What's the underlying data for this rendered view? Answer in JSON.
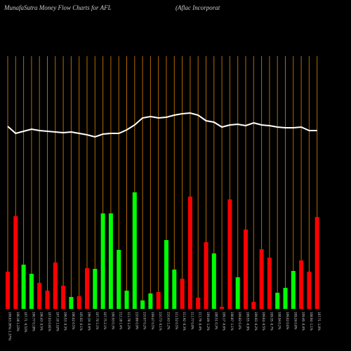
{
  "chart_data": {
    "type": "bar",
    "title": "MunafaSutra  Money Flow  Charts for AFL",
    "subtitle": "(Aflac Incorporat",
    "categories": [
      "109.63 26%(-1.37%)",
      "106.38 1.23%",
      "107.71 -0.53%",
      "106.77 0.18%",
      "106.43 -0.5%",
      "107.03 0.81%",
      "107.10 1.02%",
      "106.53 -0.3%",
      "106.02 0.5%",
      "105.93 -0.1%",
      "106.34 -0.6%",
      "107.70 1.1%",
      "107.75 2.1%",
      "106.93 0.3%",
      "112.18 1.4%",
      "111.78 1.2%",
      "110.86 0.9%",
      "110.07 0.2%",
      "109.47 0.5%",
      "110.73 -0.1%",
      "110.43 1.2%",
      "111.52 0.5%",
      "111.92 -0.3%",
      "111.77 0.8%",
      "111.76 -0.4%",
      "109.49 -1.2%",
      "108.51 0.3%",
      "109.17 -0.6%",
      "108.87 -1.1%",
      "109.82 0.4%",
      "109.55 -0.9%",
      "109.93 -0.2%",
      "109.64 -0.5%",
      "109.35 -0.7%",
      "108.94 0.2%",
      "109.02 0.6%",
      "109.26 0.8%",
      "109.40 -0.4%",
      "108.94 -1.1%",
      "107.71 -1.0%"
    ],
    "values": [
      53,
      132,
      63,
      50,
      37,
      26,
      66,
      33,
      17,
      18,
      58,
      57,
      136,
      136,
      84,
      26,
      166,
      12,
      22,
      24,
      98,
      56,
      43,
      160,
      16,
      95,
      79,
      3,
      156,
      45,
      113,
      10,
      85,
      73,
      23,
      30,
      54,
      69,
      53,
      131
    ],
    "colors": [
      "red",
      "red",
      "lime",
      "lime",
      "red",
      "red",
      "red",
      "red",
      "lime",
      "red",
      "red",
      "lime",
      "lime",
      "lime",
      "lime",
      "lime",
      "lime",
      "lime",
      "lime",
      "red",
      "lime",
      "lime",
      "red",
      "red",
      "red",
      "red",
      "lime",
      "red",
      "red",
      "lime",
      "red",
      "red",
      "red",
      "red",
      "lime",
      "lime",
      "lime",
      "red",
      "red",
      "red"
    ],
    "line_color": "#ffffff",
    "line_values": [
      260,
      250,
      253,
      256,
      254,
      253,
      252,
      251,
      252,
      250,
      248,
      245,
      249,
      250,
      250,
      255,
      262,
      272,
      274,
      272,
      273,
      276,
      278,
      279,
      276,
      268,
      266,
      259,
      262,
      263,
      261,
      265,
      262,
      261,
      259,
      258,
      258,
      259,
      254,
      254
    ],
    "grid_color": "#b36b00"
  }
}
